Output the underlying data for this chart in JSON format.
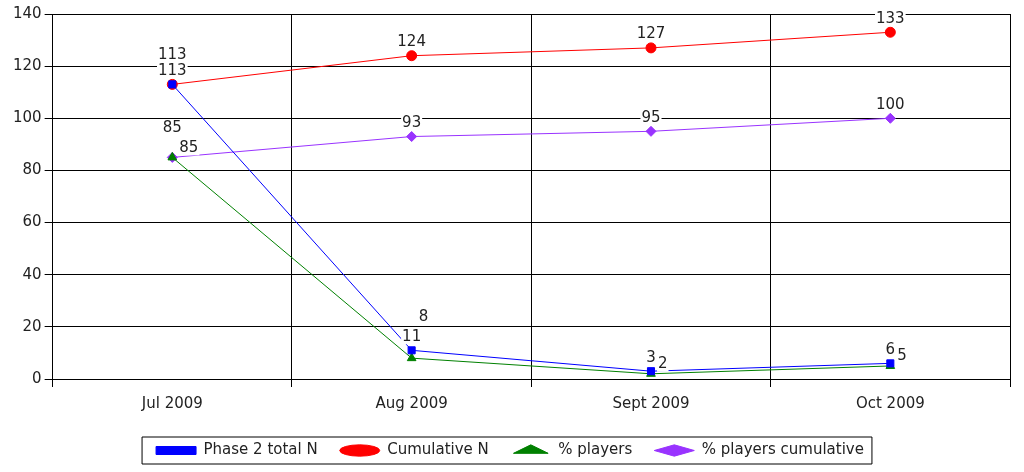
{
  "chart_data": {
    "type": "line",
    "categories": [
      "Jul 2009",
      "Aug 2009",
      "Sept 2009",
      "Oct 2009"
    ],
    "series": [
      {
        "name": "Phase 2 total N",
        "color": "#0000ff",
        "marker": "square",
        "values": [
          113,
          11,
          3,
          6
        ]
      },
      {
        "name": "Cumulative N",
        "color": "#ff0000",
        "marker": "circle",
        "values": [
          113,
          124,
          127,
          133
        ]
      },
      {
        "name": "% players",
        "color": "#008000",
        "marker": "triangle",
        "values": [
          85,
          8,
          2,
          5
        ]
      },
      {
        "name": "% players cumulative",
        "color": "#9933ff",
        "marker": "diamond",
        "values": [
          85,
          93,
          95,
          100
        ]
      }
    ],
    "ylim": [
      0,
      140
    ],
    "yticks": [
      0,
      20,
      40,
      60,
      80,
      100,
      120,
      140
    ],
    "grid": true,
    "legend": "bottom",
    "data_labels": true,
    "line_style": "solid"
  }
}
